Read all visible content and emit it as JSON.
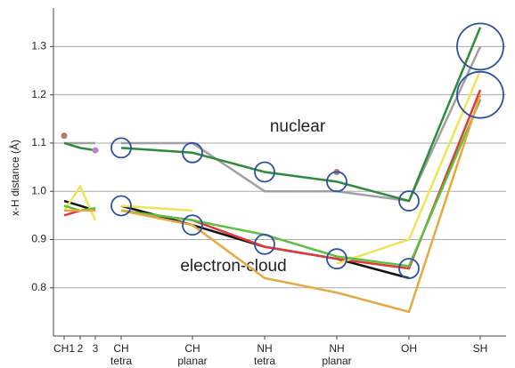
{
  "chart_data": {
    "type": "line",
    "ylabel": "x-H distance (Å)",
    "categories": [
      [
        "CH1"
      ],
      [
        "2"
      ],
      [
        "3"
      ],
      [
        "CH",
        "tetra"
      ],
      [
        "CH",
        "planar"
      ],
      [
        "NH",
        "tetra"
      ],
      [
        "NH",
        "planar"
      ],
      [
        "OH"
      ],
      [
        "SH"
      ]
    ],
    "ylim": [
      0.7,
      1.38
    ],
    "yticks": [
      0.8,
      0.9,
      {
        "value": 1.0,
        "label": "1.0"
      },
      1.1,
      1.2,
      1.3
    ],
    "grid": true,
    "annotations": [
      "nuclear",
      "electron-cloud"
    ],
    "series": [
      {
        "color": "#a0a0a0",
        "values": [
          1.1,
          1.1,
          1.1,
          1.1,
          1.1,
          1.0,
          1.0,
          0.98,
          1.3
        ]
      },
      {
        "color": "#2e8b3a",
        "values": [
          1.1,
          1.09,
          1.085,
          1.09,
          1.08,
          1.04,
          1.02,
          0.98,
          1.34
        ]
      },
      {
        "color": "#111111",
        "values": [
          0.98,
          0.97,
          0.96,
          0.97,
          0.93,
          0.885,
          0.86,
          0.82,
          null
        ]
      },
      {
        "color": "#e03a3a",
        "values": [
          0.95,
          0.96,
          0.965,
          0.96,
          0.94,
          0.885,
          0.86,
          0.84,
          1.21
        ]
      },
      {
        "color": "#eee45a",
        "values": [
          0.96,
          1.01,
          0.94,
          0.97,
          0.96,
          null,
          0.85,
          0.9,
          1.25
        ]
      },
      {
        "color": "#5cc040",
        "values": [
          0.97,
          0.96,
          0.965,
          0.96,
          0.94,
          0.91,
          0.865,
          0.845,
          1.19
        ]
      },
      {
        "color": "#e8a840",
        "values": [
          0.96,
          0.96,
          0.96,
          0.96,
          0.93,
          0.82,
          0.79,
          0.75,
          1.2
        ]
      }
    ],
    "points": [
      {
        "x": 0,
        "value": 1.115,
        "color": "#b07a6a"
      },
      {
        "x": 2,
        "value": 1.085,
        "color": "#c080d0"
      },
      {
        "x": 6,
        "value": 1.04,
        "color": "#b07a6a"
      }
    ],
    "circles": [
      {
        "x": 3,
        "value": 1.09,
        "size": 11
      },
      {
        "x": 3,
        "value": 0.97,
        "size": 11
      },
      {
        "x": 4,
        "value": 1.08,
        "size": 11
      },
      {
        "x": 4,
        "value": 0.93,
        "size": 11
      },
      {
        "x": 5,
        "value": 1.04,
        "size": 11
      },
      {
        "x": 5,
        "value": 0.89,
        "size": 11
      },
      {
        "x": 6,
        "value": 1.02,
        "size": 11
      },
      {
        "x": 6,
        "value": 0.86,
        "size": 11
      },
      {
        "x": 7,
        "value": 0.98,
        "size": 11
      },
      {
        "x": 7,
        "value": 0.84,
        "size": 11
      },
      {
        "x": 8,
        "value": 1.3,
        "size": 26
      },
      {
        "x": 8,
        "value": 1.2,
        "size": 26
      }
    ]
  }
}
